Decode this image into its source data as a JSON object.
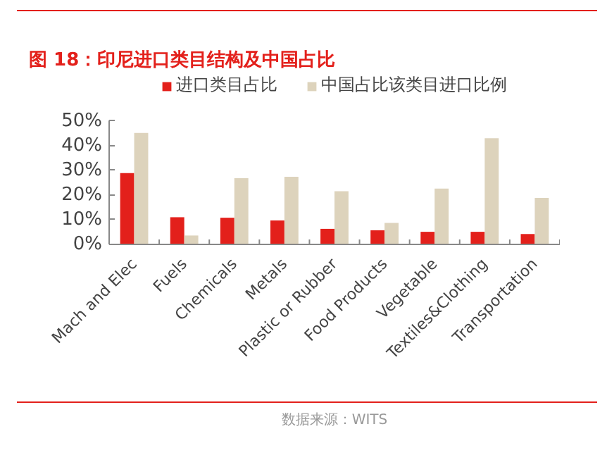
{
  "chart_data": {
    "type": "bar",
    "title": "图 18：印尼进口类目结构及中国占比",
    "categories": [
      "Mach and Elec",
      "Fuels",
      "Chemicals",
      "Metals",
      "Plastic or Rubber",
      "Food Products",
      "Vegetable",
      "Textiles&Clothing",
      "Transportation"
    ],
    "series": [
      {
        "name": "进口类目占比",
        "color": "#e3201b",
        "values": [
          0.289,
          0.11,
          0.108,
          0.097,
          0.063,
          0.057,
          0.051,
          0.051,
          0.042
        ]
      },
      {
        "name": "中国占比该类目进口比例",
        "color": "#ddd3bc",
        "values": [
          0.451,
          0.036,
          0.268,
          0.274,
          0.215,
          0.087,
          0.226,
          0.43,
          0.188
        ]
      }
    ],
    "ylim": [
      0,
      0.5
    ],
    "yticks": [
      {
        "value": 0,
        "label": "0%"
      },
      {
        "value": 0.1,
        "label": "10%"
      },
      {
        "value": 0.2,
        "label": "20%"
      },
      {
        "value": 0.3,
        "label": "30%"
      },
      {
        "value": 0.4,
        "label": "40%"
      },
      {
        "value": 0.5,
        "label": "50%"
      }
    ],
    "grid": false,
    "legend": "top",
    "annotations": [
      "数据来源：WITS"
    ]
  }
}
